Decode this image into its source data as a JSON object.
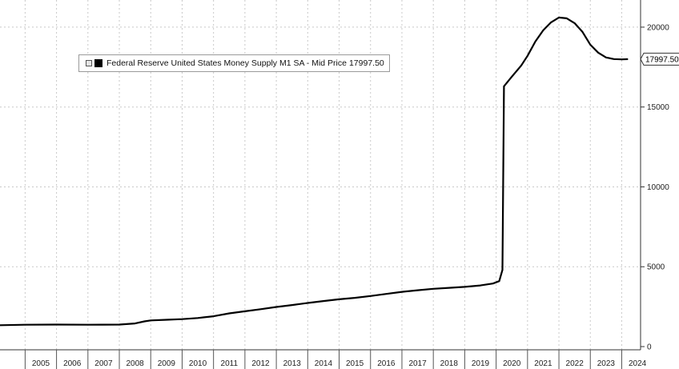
{
  "chart_data": {
    "type": "line",
    "title": "",
    "xlabel": "",
    "ylabel": "",
    "legend": {
      "label": "Federal Reserve United States Money Supply M1 SA - Mid Price",
      "value": "17997.50",
      "placement": "top-left"
    },
    "last_value_label": "17997.50",
    "ylim": [
      -200,
      21700
    ],
    "yticks": [
      0,
      5000,
      10000,
      15000,
      20000
    ],
    "ytick_labels": [
      "0",
      "5000",
      "10000",
      "15000",
      "20000"
    ],
    "xlim": [
      2004.2,
      2024.6
    ],
    "xtick_labels": [
      "2005",
      "2006",
      "2007",
      "2008",
      "2009",
      "2010",
      "2011",
      "2012",
      "2013",
      "2014",
      "2015",
      "2016",
      "2017",
      "2018",
      "2019",
      "2020",
      "2021",
      "2022",
      "2023",
      "2024"
    ],
    "grid": true,
    "y_axis_position": "right",
    "series": [
      {
        "color": "#000000",
        "points": [
          [
            2004.2,
            1340
          ],
          [
            2005.0,
            1370
          ],
          [
            2006.0,
            1380
          ],
          [
            2007.0,
            1370
          ],
          [
            2008.0,
            1380
          ],
          [
            2008.5,
            1450
          ],
          [
            2008.8,
            1580
          ],
          [
            2009.0,
            1640
          ],
          [
            2009.5,
            1680
          ],
          [
            2010.0,
            1720
          ],
          [
            2010.5,
            1790
          ],
          [
            2011.0,
            1900
          ],
          [
            2011.5,
            2080
          ],
          [
            2012.0,
            2210
          ],
          [
            2012.5,
            2340
          ],
          [
            2013.0,
            2480
          ],
          [
            2013.5,
            2600
          ],
          [
            2014.0,
            2730
          ],
          [
            2014.5,
            2850
          ],
          [
            2015.0,
            2960
          ],
          [
            2015.5,
            3050
          ],
          [
            2016.0,
            3170
          ],
          [
            2016.5,
            3300
          ],
          [
            2017.0,
            3430
          ],
          [
            2017.5,
            3530
          ],
          [
            2018.0,
            3620
          ],
          [
            2018.5,
            3680
          ],
          [
            2019.0,
            3740
          ],
          [
            2019.5,
            3830
          ],
          [
            2019.9,
            3950
          ],
          [
            2020.1,
            4100
          ],
          [
            2020.2,
            4800
          ],
          [
            2020.25,
            16300
          ],
          [
            2020.5,
            16900
          ],
          [
            2020.8,
            17600
          ],
          [
            2021.0,
            18200
          ],
          [
            2021.25,
            19100
          ],
          [
            2021.5,
            19800
          ],
          [
            2021.75,
            20300
          ],
          [
            2022.0,
            20600
          ],
          [
            2022.25,
            20550
          ],
          [
            2022.5,
            20250
          ],
          [
            2022.75,
            19700
          ],
          [
            2023.0,
            18900
          ],
          [
            2023.25,
            18400
          ],
          [
            2023.5,
            18100
          ],
          [
            2023.75,
            18000
          ],
          [
            2024.0,
            17980
          ],
          [
            2024.2,
            17997.5
          ]
        ]
      }
    ]
  }
}
